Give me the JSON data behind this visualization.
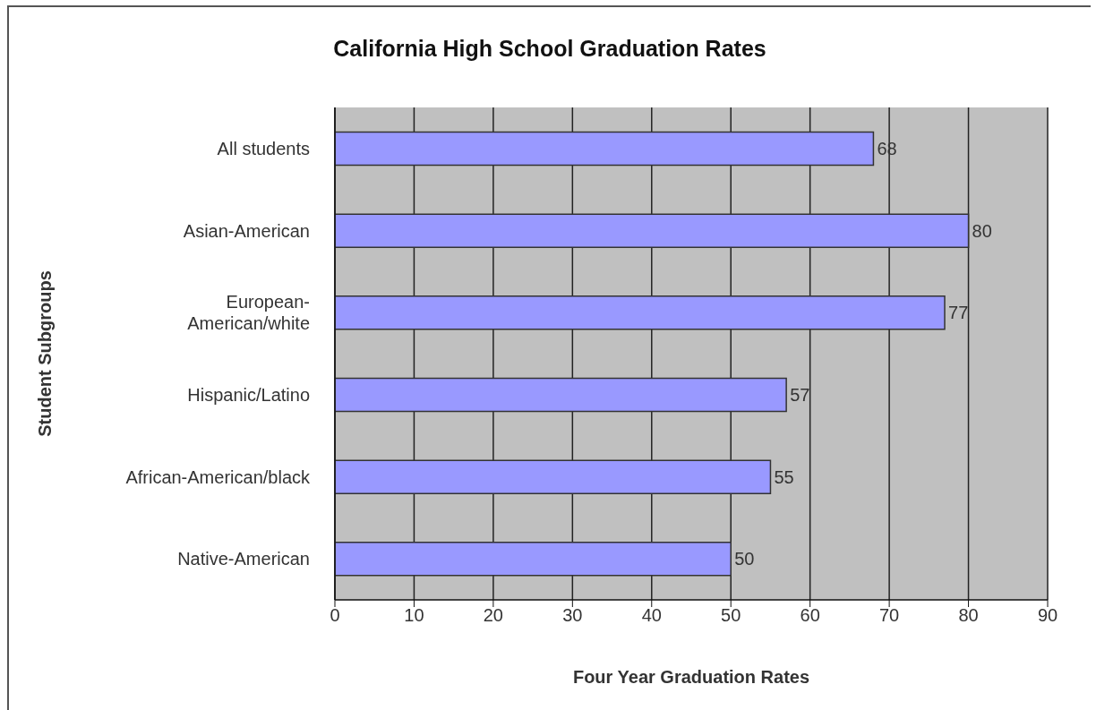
{
  "chart_data": {
    "type": "bar",
    "orientation": "horizontal",
    "title": "California High School Graduation Rates",
    "xlabel": "Four Year Graduation Rates",
    "ylabel": "Student Subgroups",
    "categories": [
      "All students",
      "Asian-American",
      "European-American/white",
      "Hispanic/Latino",
      "African-American/black",
      "Native-American"
    ],
    "values": [
      68,
      80,
      77,
      57,
      55,
      50
    ],
    "color": "#9999ff",
    "xlim": [
      0,
      90
    ],
    "xticks": [
      0,
      10,
      20,
      30,
      40,
      50,
      60,
      70,
      80,
      90
    ],
    "grid": "x",
    "data_labels": true
  }
}
